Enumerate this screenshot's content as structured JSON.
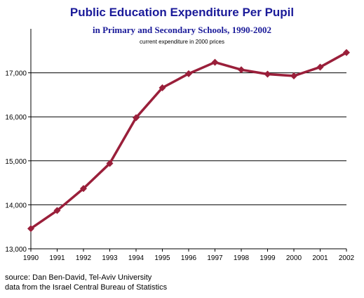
{
  "chart_data": {
    "type": "line",
    "title": "Public Education Expenditure Per Pupil",
    "subtitle": "in Primary and Secondary Schools, 1990-2002",
    "note": "current expenditure in 2000 prices",
    "x": [
      "1990",
      "1991",
      "1992",
      "1993",
      "1994",
      "1995",
      "1996",
      "1997",
      "1998",
      "1999",
      "2000",
      "2001",
      "2002"
    ],
    "series": [
      {
        "values": [
          13460,
          13870,
          14370,
          14940,
          15980,
          16660,
          16980,
          17240,
          17070,
          16970,
          16930,
          17130,
          17460
        ],
        "color": "#9a1f3a"
      }
    ],
    "ylim": [
      13000,
      18000
    ],
    "yticks": [
      13000,
      14000,
      15000,
      16000,
      17000
    ],
    "ytick_labels": [
      "13,000",
      "14,000",
      "15,000",
      "16,000",
      "17,000"
    ],
    "grid": "horizontal",
    "legend": "none"
  },
  "source": {
    "line1": "source: Dan Ben-David, Tel-Aviv University",
    "line2": "data from the Israel Central Bureau of Statistics"
  }
}
